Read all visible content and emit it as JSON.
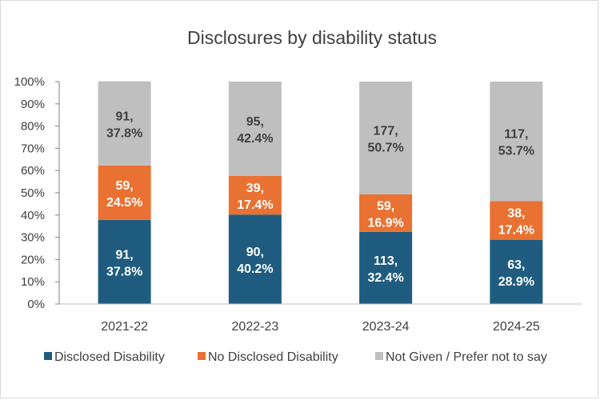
{
  "chart_data": {
    "type": "bar",
    "stacked": true,
    "percent_stacked": true,
    "title": "Disclosures by disability status",
    "categories": [
      "2021-22",
      "2022-23",
      "2023-24",
      "2024-25"
    ],
    "ylim": [
      0,
      100
    ],
    "yticks": [
      "0%",
      "10%",
      "20%",
      "30%",
      "40%",
      "50%",
      "60%",
      "70%",
      "80%",
      "90%",
      "100%"
    ],
    "grid": false,
    "legend_position": "bottom",
    "series": [
      {
        "name": "Disclosed Disability",
        "color": "#1F5C7F",
        "values": [
          37.8,
          40.2,
          32.4,
          28.9
        ],
        "labels": [
          [
            "91,",
            "37.8%"
          ],
          [
            "90,",
            "40.2%"
          ],
          [
            "113,",
            "32.4%"
          ],
          [
            "63,",
            "28.9%"
          ]
        ],
        "label_color": "#ffffff"
      },
      {
        "name": "No Disclosed Disability",
        "color": "#E97132",
        "values": [
          24.5,
          17.4,
          16.9,
          17.4
        ],
        "labels": [
          [
            "59,",
            "24.5%"
          ],
          [
            "39,",
            "17.4%"
          ],
          [
            "59,",
            "16.9%"
          ],
          [
            "38,",
            "17.4%"
          ]
        ],
        "label_color": "#ffffff"
      },
      {
        "name": "Not Given / Prefer not to say",
        "color": "#BFBFBF",
        "values": [
          37.8,
          42.4,
          50.7,
          53.7
        ],
        "labels": [
          [
            "91,",
            "37.8%"
          ],
          [
            "95,",
            "42.4%"
          ],
          [
            "177,",
            "50.7%"
          ],
          [
            "117,",
            "53.7%"
          ]
        ],
        "label_color": "#404040"
      }
    ]
  }
}
